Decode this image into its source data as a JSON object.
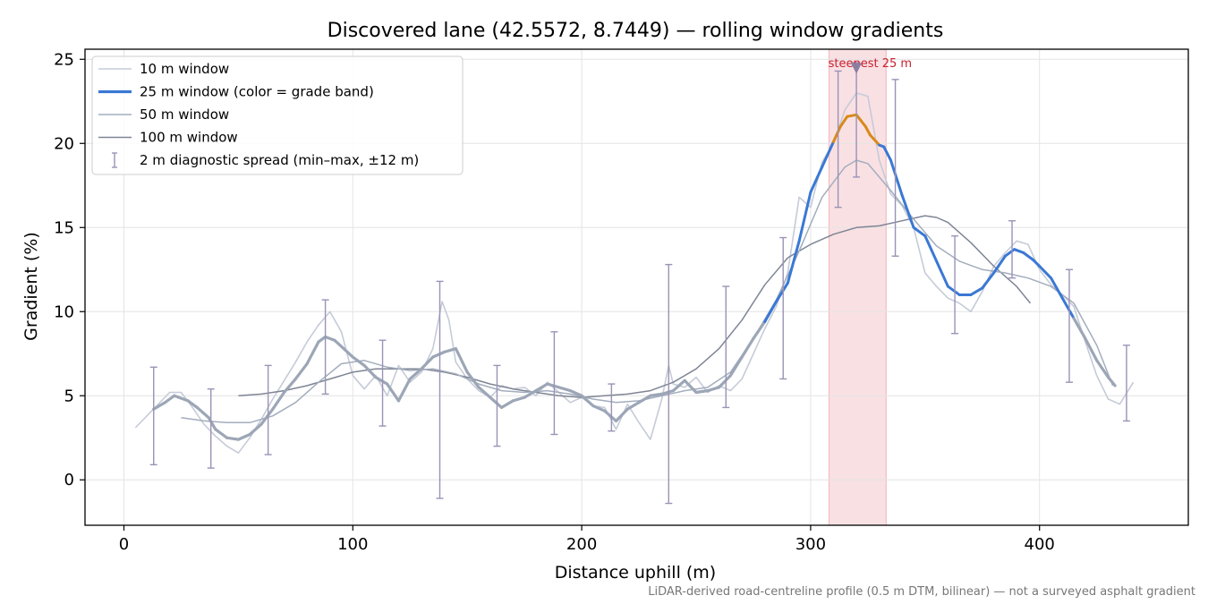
{
  "chart_data": {
    "type": "line",
    "title": "Discovered lane (42.5572, 8.7449) — rolling window gradients",
    "xlabel": "Distance uphill (m)",
    "ylabel": "Gradient (%)",
    "footnote": "LiDAR-derived road-centreline profile (0.5 m DTM, bilinear) — not a surveyed asphalt gradient",
    "xlim": [
      -17,
      465
    ],
    "ylim": [
      -2.7,
      25.6
    ],
    "xticks": [
      0,
      100,
      200,
      300,
      400
    ],
    "yticks": [
      0,
      5,
      10,
      15,
      20,
      25
    ],
    "grid": true,
    "legend_position": "top-left",
    "highlight": {
      "x0": 308,
      "x1": 333,
      "label": "steepest 25 m",
      "marker_x": 320,
      "marker_y": 24.4
    },
    "series": [
      {
        "name": "10 m window",
        "color": "#c5cbd8",
        "x": [
          5,
          10,
          15,
          20,
          25,
          30,
          35,
          40,
          45,
          50,
          55,
          60,
          65,
          70,
          75,
          80,
          85,
          90,
          95,
          100,
          105,
          110,
          115,
          120,
          125,
          130,
          135,
          139,
          142,
          145,
          150,
          155,
          160,
          165,
          170,
          175,
          180,
          185,
          190,
          195,
          200,
          205,
          210,
          215,
          220,
          225,
          230,
          235,
          238,
          240,
          245,
          250,
          255,
          260,
          265,
          270,
          275,
          280,
          285,
          290,
          295,
          300,
          305,
          310,
          315,
          320,
          325,
          330,
          335,
          340,
          345,
          350,
          355,
          360,
          365,
          370,
          375,
          380,
          385,
          390,
          395,
          400,
          405,
          410,
          415,
          420,
          425,
          430,
          435,
          441
        ],
        "values": [
          3.1,
          3.8,
          4.5,
          5.2,
          5.2,
          4.3,
          3.3,
          2.6,
          2.0,
          1.6,
          2.5,
          3.6,
          4.8,
          5.9,
          7.0,
          8.2,
          9.2,
          10.0,
          8.8,
          6.2,
          5.4,
          6.2,
          5.0,
          6.8,
          5.8,
          6.4,
          7.8,
          10.6,
          9.5,
          7.0,
          6.0,
          5.3,
          4.9,
          5.6,
          5.4,
          5.5,
          5.0,
          5.8,
          5.2,
          4.6,
          4.9,
          4.4,
          4.3,
          3.0,
          4.5,
          3.4,
          2.4,
          4.8,
          6.8,
          5.7,
          5.5,
          6.1,
          5.2,
          5.6,
          5.3,
          6.0,
          7.5,
          9.0,
          10.3,
          12.3,
          16.8,
          16.2,
          18.9,
          20.0,
          22.0,
          23.0,
          22.8,
          19.0,
          17.0,
          16.3,
          15.0,
          12.3,
          11.5,
          10.8,
          10.5,
          10.0,
          11.2,
          12.7,
          13.5,
          14.2,
          14.0,
          12.5,
          11.6,
          11.0,
          10.3,
          8.2,
          6.2,
          4.8,
          4.5,
          5.8
        ]
      },
      {
        "name": "25 m window (color = grade band)",
        "color": "#3a78d4",
        "band_color": "#d88a17",
        "x": [
          13,
          18,
          22,
          28,
          32,
          37,
          40,
          45,
          50,
          55,
          60,
          65,
          70,
          75,
          80,
          85,
          88,
          92,
          96,
          100,
          105,
          110,
          115,
          120,
          125,
          130,
          135,
          140,
          145,
          150,
          155,
          160,
          165,
          170,
          175,
          180,
          185,
          190,
          195,
          200,
          205,
          210,
          215,
          220,
          225,
          230,
          235,
          240,
          245,
          250,
          255,
          260,
          265,
          270,
          275,
          280,
          285,
          290,
          295,
          300,
          305,
          310,
          313,
          316,
          320,
          324,
          326,
          330,
          332,
          335,
          340,
          345,
          350,
          355,
          360,
          365,
          370,
          375,
          380,
          385,
          389,
          393,
          397,
          400,
          405,
          410,
          415,
          420,
          425,
          430,
          433
        ],
        "values": [
          4.2,
          4.6,
          5.0,
          4.7,
          4.3,
          3.7,
          3.0,
          2.5,
          2.4,
          2.7,
          3.3,
          4.2,
          5.2,
          6.0,
          6.9,
          8.2,
          8.5,
          8.3,
          7.8,
          7.3,
          6.8,
          6.1,
          5.7,
          4.7,
          6.0,
          6.6,
          7.3,
          7.6,
          7.8,
          6.4,
          5.5,
          4.9,
          4.3,
          4.7,
          4.9,
          5.3,
          5.7,
          5.5,
          5.3,
          5.0,
          4.4,
          4.1,
          3.5,
          4.2,
          4.6,
          5.0,
          5.1,
          5.3,
          5.9,
          5.2,
          5.3,
          5.5,
          6.2,
          7.3,
          8.4,
          9.4,
          10.6,
          11.7,
          14.2,
          17.1,
          18.6,
          20.1,
          21.0,
          21.6,
          21.7,
          21.0,
          20.5,
          19.9,
          19.8,
          19.0,
          16.9,
          15.0,
          14.5,
          13.0,
          11.5,
          11.0,
          11.0,
          11.4,
          12.3,
          13.3,
          13.7,
          13.5,
          13.1,
          12.7,
          12.0,
          10.8,
          9.6,
          8.4,
          7.1,
          6.1,
          5.6
        ],
        "band_range": [
          311,
          330
        ]
      },
      {
        "name": "50 m window",
        "color": "#a3adbd",
        "x": [
          25,
          35,
          45,
          55,
          65,
          75,
          85,
          95,
          105,
          115,
          125,
          135,
          145,
          155,
          165,
          175,
          185,
          195,
          205,
          215,
          225,
          235,
          245,
          255,
          265,
          275,
          285,
          295,
          305,
          315,
          320,
          325,
          335,
          345,
          355,
          365,
          375,
          385,
          395,
          405,
          415,
          425,
          432
        ],
        "values": [
          3.7,
          3.5,
          3.4,
          3.4,
          3.8,
          4.6,
          5.8,
          6.9,
          7.1,
          6.7,
          6.5,
          6.6,
          6.3,
          5.7,
          5.3,
          5.2,
          5.3,
          5.1,
          4.8,
          4.6,
          4.7,
          5.0,
          5.3,
          5.5,
          6.4,
          8.4,
          10.7,
          13.6,
          16.8,
          18.6,
          19.0,
          18.8,
          17.2,
          15.5,
          13.9,
          13.0,
          12.5,
          12.3,
          12.0,
          11.5,
          10.5,
          8.0,
          5.6
        ]
      },
      {
        "name": "100 m window",
        "color": "#7e8595",
        "x": [
          50,
          60,
          70,
          80,
          90,
          100,
          110,
          120,
          130,
          140,
          150,
          160,
          170,
          180,
          190,
          200,
          210,
          220,
          230,
          240,
          250,
          260,
          270,
          280,
          290,
          300,
          310,
          320,
          330,
          340,
          350,
          355,
          360,
          370,
          380,
          390,
          396
        ],
        "values": [
          5.0,
          5.1,
          5.3,
          5.6,
          6.0,
          6.4,
          6.6,
          6.6,
          6.6,
          6.4,
          6.1,
          5.7,
          5.4,
          5.2,
          5.0,
          4.9,
          5.0,
          5.1,
          5.3,
          5.8,
          6.6,
          7.8,
          9.5,
          11.6,
          13.2,
          14.0,
          14.6,
          15.0,
          15.1,
          15.4,
          15.7,
          15.6,
          15.3,
          14.1,
          12.7,
          11.5,
          10.5
        ]
      },
      {
        "name": "2 m diagnostic spread (min–max, ±12 m)",
        "color": "#9b92b6",
        "x": [
          13,
          38,
          63,
          88,
          113,
          138,
          163,
          188,
          213,
          238,
          263,
          288,
          312,
          320,
          337,
          363,
          388,
          413,
          438
        ],
        "low": [
          0.9,
          0.7,
          1.5,
          5.1,
          3.2,
          -1.1,
          2.0,
          2.7,
          2.9,
          -1.4,
          4.3,
          6.0,
          16.2,
          18.0,
          13.3,
          8.7,
          12.0,
          5.8,
          3.5
        ],
        "high": [
          6.7,
          5.4,
          6.8,
          10.7,
          8.3,
          11.8,
          6.8,
          8.8,
          5.7,
          12.8,
          11.5,
          14.4,
          24.3,
          24.8,
          23.8,
          14.5,
          15.4,
          12.5,
          8.0
        ],
        "center": [
          4.2,
          2.5,
          4.2,
          8.5,
          6.0,
          7.3,
          4.5,
          5.6,
          4.2,
          5.3,
          6.5,
          10.6,
          20.1,
          21.7,
          16.9,
          11.0,
          13.7,
          9.6,
          5.6
        ]
      }
    ]
  }
}
